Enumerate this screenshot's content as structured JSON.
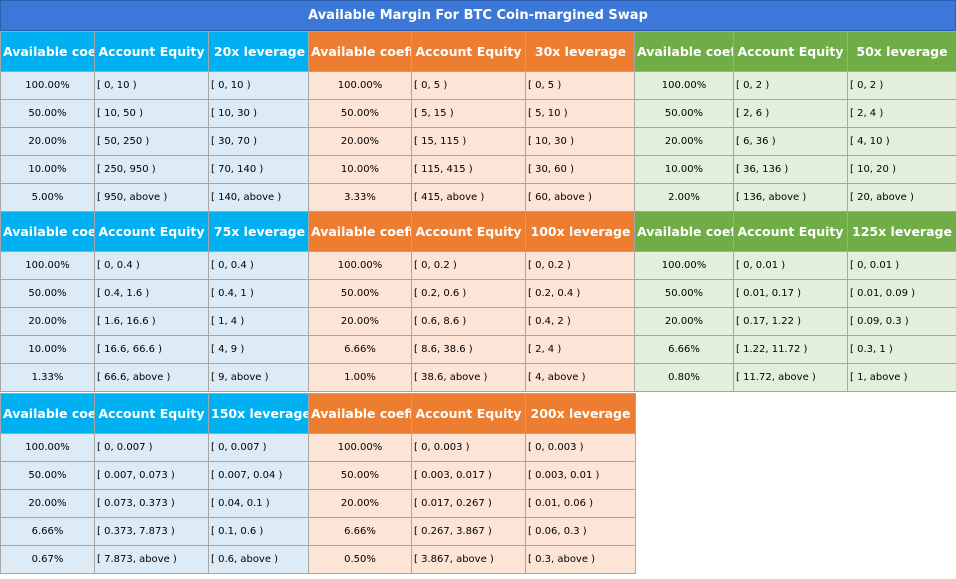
{
  "title": "Available Margin For BTC Coin-margined Swap",
  "blocks": [
    {
      "headers": [
        "Available coefficient",
        "Account Equity",
        "20x leverage"
      ],
      "rows": [
        [
          "100.00%",
          "[ 0, 10 )",
          "[ 0, 10 )"
        ],
        [
          "50.00%",
          "[ 10, 50 )",
          "[ 10, 30 )"
        ],
        [
          "20.00%",
          "[ 50, 250 )",
          "[ 30, 70 )"
        ],
        [
          "10.00%",
          "[ 250, 950 )",
          "[ 70, 140 )"
        ],
        [
          "5.00%",
          "[ 950, above )",
          "[ 140, above )"
        ]
      ]
    },
    {
      "headers": [
        "Available coefficient",
        "Account Equity",
        "30x leverage"
      ],
      "rows": [
        [
          "100.00%",
          "[ 0, 5 )",
          "[ 0, 5 )"
        ],
        [
          "50.00%",
          "[ 5, 15 )",
          "[ 5, 10 )"
        ],
        [
          "20.00%",
          "[ 15, 115 )",
          "[ 10, 30 )"
        ],
        [
          "10.00%",
          "[ 115, 415 )",
          "[ 30, 60 )"
        ],
        [
          "3.33%",
          "[ 415, above )",
          "[ 60, above )"
        ]
      ]
    },
    {
      "headers": [
        "Available coefficient",
        "Account Equity",
        "50x leverage"
      ],
      "rows": [
        [
          "100.00%",
          "[ 0, 2 )",
          "[ 0, 2 )"
        ],
        [
          "50.00%",
          "[ 2, 6 )",
          "[ 2, 4 )"
        ],
        [
          "20.00%",
          "[ 6, 36 )",
          "[ 4, 10 )"
        ],
        [
          "10.00%",
          "[ 36, 136 )",
          "[ 10, 20 )"
        ],
        [
          "2.00%",
          "[ 136, above )",
          "[ 20, above )"
        ]
      ]
    },
    {
      "headers": [
        "Available coefficient",
        "Account Equity",
        "75x leverage"
      ],
      "rows": [
        [
          "100.00%",
          "[ 0, 0.4 )",
          "[ 0, 0.4 )"
        ],
        [
          "50.00%",
          "[ 0.4, 1.6 )",
          "[ 0.4, 1 )"
        ],
        [
          "20.00%",
          "[ 1.6, 16.6 )",
          "[ 1, 4 )"
        ],
        [
          "10.00%",
          "[ 16.6, 66.6 )",
          "[ 4, 9 )"
        ],
        [
          "1.33%",
          "[ 66.6, above )",
          "[ 9, above )"
        ]
      ]
    },
    {
      "headers": [
        "Available coefficient",
        "Account Equity",
        "100x leverage"
      ],
      "rows": [
        [
          "100.00%",
          "[ 0, 0.2 )",
          "[ 0, 0.2 )"
        ],
        [
          "50.00%",
          "[ 0.2, 0.6 )",
          "[ 0.2, 0.4 )"
        ],
        [
          "20.00%",
          "[ 0.6, 8.6 )",
          "[ 0.4, 2 )"
        ],
        [
          "6.66%",
          "[ 8.6, 38.6 )",
          "[ 2, 4 )"
        ],
        [
          "1.00%",
          "[ 38.6, above )",
          "[ 4, above )"
        ]
      ]
    },
    {
      "headers": [
        "Available coefficient",
        "Account Equity",
        "125x leverage"
      ],
      "rows": [
        [
          "100.00%",
          "[ 0, 0.01 )",
          "[ 0, 0.01 )"
        ],
        [
          "50.00%",
          "[ 0.01, 0.17 )",
          "[ 0.01, 0.09 )"
        ],
        [
          "20.00%",
          "[ 0.17, 1.22 )",
          "[ 0.09, 0.3 )"
        ],
        [
          "6.66%",
          "[ 1.22, 11.72 )",
          "[ 0.3, 1 )"
        ],
        [
          "0.80%",
          "[ 11.72, above )",
          "[ 1, above )"
        ]
      ]
    },
    {
      "headers": [
        "Available coefficient",
        "Account Equity",
        "150x leverage"
      ],
      "rows": [
        [
          "100.00%",
          "[ 0, 0.007 )",
          "[ 0, 0.007 )"
        ],
        [
          "50.00%",
          "[ 0.007, 0.073 )",
          "[ 0.007, 0.04 )"
        ],
        [
          "20.00%",
          "[ 0.073, 0.373 )",
          "[ 0.04, 0.1 )"
        ],
        [
          "6.66%",
          "[ 0.373, 7.873 )",
          "[ 0.1, 0.6 )"
        ],
        [
          "0.67%",
          "[ 7.873, above )",
          "[ 0.6, above )"
        ]
      ]
    },
    {
      "headers": [
        "Available coefficient",
        "Account Equity",
        "200x leverage"
      ],
      "rows": [
        [
          "100.00%",
          "[ 0, 0.003 )",
          "[ 0, 0.003 )"
        ],
        [
          "50.00%",
          "[ 0.003, 0.017 )",
          "[ 0.003, 0.01 )"
        ],
        [
          "20.00%",
          "[ 0.017, 0.267 )",
          "[ 0.01, 0.06 )"
        ],
        [
          "6.66%",
          "[ 0.267, 3.867 )",
          "[ 0.06, 0.3 )"
        ],
        [
          "0.50%",
          "[ 3.867, above )",
          "[ 0.3, above )"
        ]
      ]
    }
  ]
}
